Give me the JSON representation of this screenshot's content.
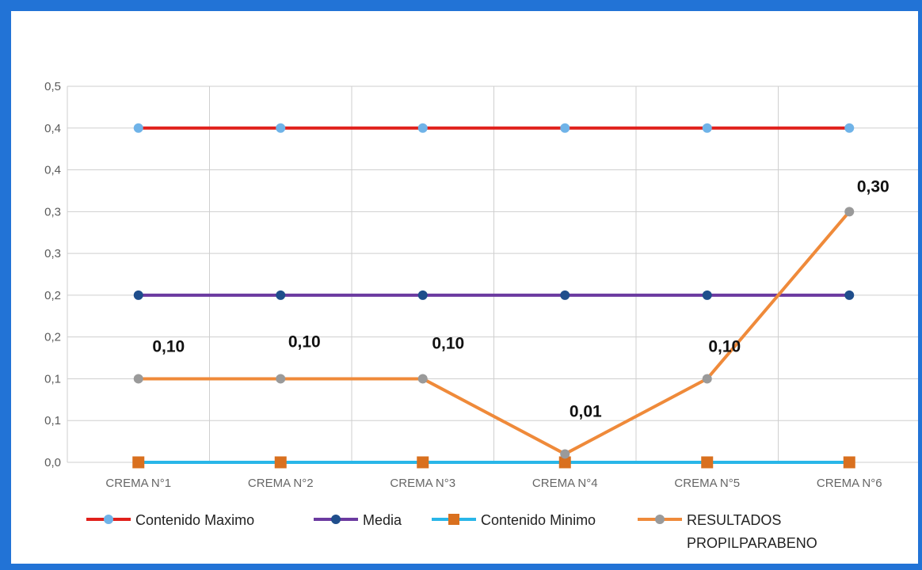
{
  "chart_data": {
    "type": "line",
    "title": "",
    "xlabel": "",
    "ylabel": "",
    "categories": [
      "CREMA N°1",
      "CREMA N°2",
      "CREMA N°3",
      "CREMA N°4",
      "CREMA N°5",
      "CREMA N°6"
    ],
    "y_tick_labels": [
      "0,0",
      "0,1",
      "0,1",
      "0,2",
      "0,2",
      "0,3",
      "0,3",
      "0,4",
      "0,4",
      "0,5"
    ],
    "ylim": [
      0,
      0.45
    ],
    "grid": true,
    "legend_position": "bottom",
    "series": [
      {
        "name": "Contenido Maximo",
        "color": "#e0201b",
        "marker": "circle",
        "marker_color": "#6fb3e8",
        "values": [
          0.4,
          0.4,
          0.4,
          0.4,
          0.4,
          0.4
        ]
      },
      {
        "name": "Media",
        "color": "#6b3aa0",
        "marker": "circle",
        "marker_color": "#1f4e8c",
        "values": [
          0.2,
          0.2,
          0.2,
          0.2,
          0.2,
          0.2
        ]
      },
      {
        "name": "Contenido Minimo",
        "color": "#29b6e8",
        "marker": "square",
        "marker_color": "#d9701f",
        "values": [
          0,
          0,
          0,
          0,
          0,
          0
        ]
      },
      {
        "name": "RESULTADOS PROPILPARABENO",
        "name_lines": [
          "RESULTADOS",
          "PROPILPARABENO"
        ],
        "color": "#ef8a3a",
        "marker": "circle",
        "marker_color": "#9a9a9a",
        "values": [
          0.1,
          0.1,
          0.1,
          0.01,
          0.1,
          0.3
        ],
        "data_labels": [
          "0,10",
          "0,10",
          "0,10",
          "0,01",
          "0,10",
          "0,30"
        ]
      }
    ]
  }
}
